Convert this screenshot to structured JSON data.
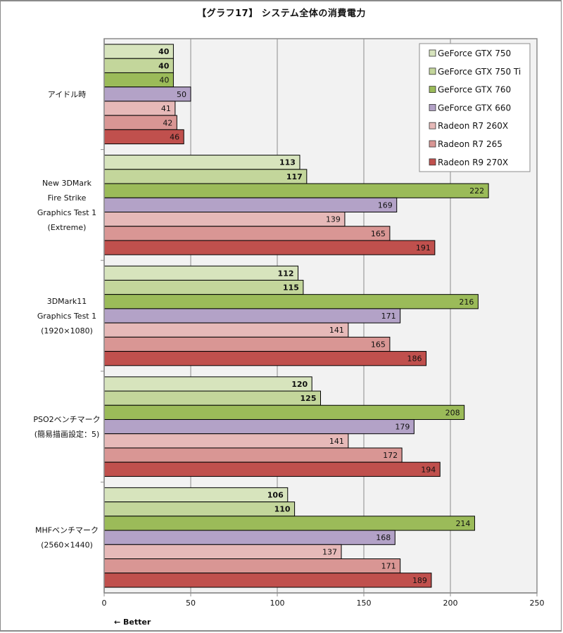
{
  "chart_data": {
    "type": "bar",
    "orientation": "horizontal",
    "title": "【グラフ17】 システム全体の消費電力",
    "xlabel": "",
    "ylabel": "",
    "xlim": [
      0,
      250
    ],
    "xticks": [
      0,
      50,
      100,
      150,
      200,
      250
    ],
    "grid": true,
    "legend_position": "top-right",
    "annotation": "← Better",
    "categories": [
      [
        "アイドル時"
      ],
      [
        "New 3DMark",
        "Fire Strike",
        "Graphics Test 1",
        "(Extreme)"
      ],
      [
        "3DMark11",
        "Graphics Test 1",
        "(1920×1080)"
      ],
      [
        "PSO2ベンチマーク",
        "(簡易描画設定：5)"
      ],
      [
        "MHFベンチマーク",
        "(2560×1440)"
      ]
    ],
    "series": [
      {
        "name": "GeForce GTX 750",
        "color": "#d7e4bd",
        "bold_labels": true,
        "values": [
          40,
          113,
          112,
          120,
          106
        ]
      },
      {
        "name": "GeForce GTX 750 Ti",
        "color": "#c3d69b",
        "bold_labels": true,
        "values": [
          40,
          117,
          115,
          125,
          110
        ]
      },
      {
        "name": "GeForce GTX 760",
        "color": "#9bbb59",
        "bold_labels": false,
        "values": [
          40,
          222,
          216,
          208,
          214
        ]
      },
      {
        "name": "GeForce GTX 660",
        "color": "#b3a2c7",
        "bold_labels": false,
        "values": [
          50,
          169,
          171,
          179,
          168
        ]
      },
      {
        "name": "Radeon R7 260X",
        "color": "#e6b9b8",
        "bold_labels": false,
        "values": [
          41,
          139,
          141,
          141,
          137
        ]
      },
      {
        "name": "Radeon R7 265",
        "color": "#d99694",
        "bold_labels": false,
        "values": [
          42,
          165,
          165,
          172,
          171
        ]
      },
      {
        "name": "Radeon R9 270X",
        "color": "#c0504d",
        "bold_labels": false,
        "values": [
          46,
          191,
          186,
          194,
          189
        ]
      }
    ]
  },
  "colors": {
    "plot_background": "#f2f2f2",
    "gridline": "#8c8c8c",
    "bar_border": "#000000"
  }
}
